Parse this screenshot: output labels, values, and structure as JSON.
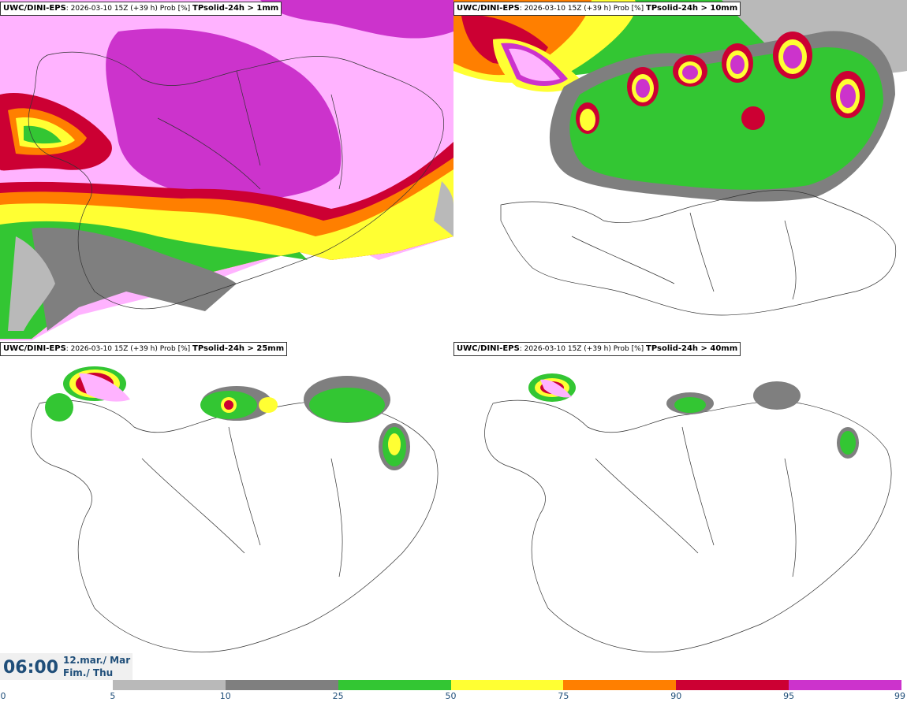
{
  "panels": [
    {
      "source": "UWC/DINI-EPS",
      "info": ": 2026-03-10 15Z (+39 h) Prob [%]",
      "variable": "TPsolid-24h > 1mm"
    },
    {
      "source": "UWC/DINI-EPS",
      "info": ": 2026-03-10 15Z (+39 h) Prob [%]",
      "variable": "TPsolid-24h > 10mm"
    },
    {
      "source": "UWC/DINI-EPS",
      "info": ": 2026-03-10 15Z (+39 h) Prob [%]",
      "variable": "TPsolid-24h > 25mm"
    },
    {
      "source": "UWC/DINI-EPS",
      "info": ": 2026-03-10 15Z (+39 h) Prob [%]",
      "variable": "TPsolid-24h > 40mm"
    }
  ],
  "valid_time": {
    "hour": "06:00",
    "date_line1": "12.mar./ Mar",
    "date_line2": "Fim./ Thu"
  },
  "legend": {
    "ticks": [
      "0",
      "5",
      "10",
      "25",
      "50",
      "75",
      "90",
      "95",
      "99"
    ],
    "colors": [
      "#ffffff",
      "#b9b9b9",
      "#7f7f7f",
      "#33c633",
      "#ffff33",
      "#ff7f00",
      "#cc0033",
      "#cc33cc",
      "#ffb3ff"
    ]
  }
}
